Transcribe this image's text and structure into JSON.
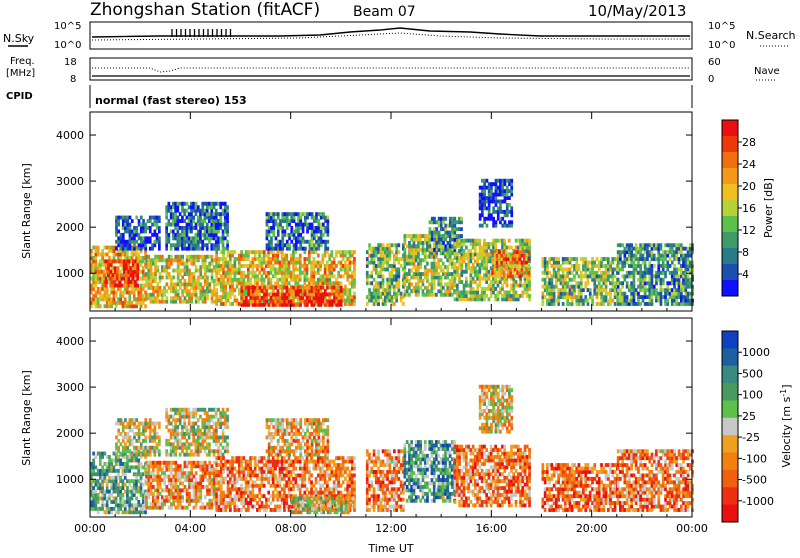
{
  "header": {
    "station": "Zhongshan Station (fitACF)",
    "beam": "Beam 07",
    "date": "10/May/2013"
  },
  "info_panels": {
    "nsky_label": "N.Sky",
    "nsearch_label": "N.Search",
    "nsky_ticks": [
      "10^5",
      "10^0"
    ],
    "freq_label_1": "Freq.",
    "freq_label_2": "[MHz]",
    "freq_ticks": [
      "18",
      "8"
    ],
    "nave_label": "Nave",
    "nave_ticks": [
      "60",
      "0"
    ],
    "cpid_label": "CPID",
    "cpid_text": "normal (fast stereo) 153"
  },
  "chart_data": [
    {
      "type": "heatmap",
      "name": "power",
      "ylabel": "Slant Range [km]",
      "ylim": [
        180,
        4500
      ],
      "yticks": [
        1000,
        2000,
        3000,
        4000
      ],
      "xlim": [
        0,
        24
      ],
      "xticks": [
        "00:00",
        "04:00",
        "08:00",
        "12:00",
        "16:00",
        "20:00",
        "00:00"
      ],
      "colorbar": {
        "label": "Power [dB]",
        "ticks": [
          "4",
          "8",
          "12",
          "16",
          "20",
          "24",
          "28"
        ],
        "colors": [
          "#1010ff",
          "#1d4fb0",
          "#2a7a8a",
          "#3f9a6a",
          "#5cc04a",
          "#b6d23a",
          "#f0c020",
          "#f59a18",
          "#f07010",
          "#ee3a0a",
          "#e81010"
        ]
      },
      "echo_regions": [
        {
          "t0": 0.0,
          "t1": 2.2,
          "r0": 250,
          "r1": 1600,
          "level": 0.62
        },
        {
          "t0": 0.5,
          "t1": 1.9,
          "r0": 700,
          "r1": 1300,
          "level": 0.92
        },
        {
          "t0": 1.0,
          "t1": 2.8,
          "r0": 1500,
          "r1": 2200,
          "level": 0.15
        },
        {
          "t0": 2.2,
          "t1": 5.0,
          "r0": 350,
          "r1": 1400,
          "level": 0.55
        },
        {
          "t0": 3.0,
          "t1": 5.5,
          "r0": 1500,
          "r1": 2500,
          "level": 0.2
        },
        {
          "t0": 5.0,
          "t1": 10.5,
          "r0": 300,
          "r1": 1500,
          "level": 0.6
        },
        {
          "t0": 6.0,
          "t1": 10.0,
          "r0": 280,
          "r1": 700,
          "level": 0.9
        },
        {
          "t0": 7.0,
          "t1": 9.5,
          "r0": 1500,
          "r1": 2300,
          "level": 0.22
        },
        {
          "t0": 11.0,
          "t1": 12.5,
          "r0": 300,
          "r1": 1600,
          "level": 0.4
        },
        {
          "t0": 12.5,
          "t1": 14.5,
          "r0": 500,
          "r1": 1800,
          "level": 0.48
        },
        {
          "t0": 13.5,
          "t1": 14.8,
          "r0": 1400,
          "r1": 2200,
          "level": 0.3
        },
        {
          "t0": 14.5,
          "t1": 17.5,
          "r0": 400,
          "r1": 1700,
          "level": 0.45
        },
        {
          "t0": 16.0,
          "t1": 17.5,
          "r0": 900,
          "r1": 1500,
          "level": 0.72
        },
        {
          "t0": 15.5,
          "t1": 16.8,
          "r0": 2000,
          "r1": 3000,
          "level": 0.12
        },
        {
          "t0": 18.0,
          "t1": 21.0,
          "r0": 300,
          "r1": 1300,
          "level": 0.42
        },
        {
          "t0": 21.0,
          "t1": 24.0,
          "r0": 300,
          "r1": 1600,
          "level": 0.3
        }
      ]
    },
    {
      "type": "heatmap",
      "name": "velocity",
      "ylabel": "Slant Range [km]",
      "ylim": [
        180,
        4500
      ],
      "yticks": [
        1000,
        2000,
        3000,
        4000
      ],
      "xlim": [
        0,
        24
      ],
      "xticks": [
        "00:00",
        "04:00",
        "08:00",
        "12:00",
        "16:00",
        "20:00",
        "00:00"
      ],
      "xlabel": "Time UT",
      "colorbar": {
        "label": "Velocity [m s^-1]",
        "ticks": [
          "1000",
          "500",
          "100",
          "25",
          "-25",
          "-100",
          "-500",
          "-1000"
        ],
        "colors": [
          "#1040c0",
          "#1d5fa0",
          "#3a8a80",
          "#4a9a60",
          "#5cc04a",
          "#c8c8c8",
          "#f0a020",
          "#f08010",
          "#f06010",
          "#ee3010",
          "#e81010"
        ]
      },
      "echo_regions": [
        {
          "t0": 0.0,
          "t1": 2.2,
          "r0": 250,
          "r1": 1600,
          "level": 0.35
        },
        {
          "t0": 1.0,
          "t1": 2.8,
          "r0": 1500,
          "r1": 2300,
          "level": 0.5
        },
        {
          "t0": 2.2,
          "t1": 5.0,
          "r0": 350,
          "r1": 1400,
          "level": 0.65
        },
        {
          "t0": 3.0,
          "t1": 5.5,
          "r0": 1500,
          "r1": 2500,
          "level": 0.5
        },
        {
          "t0": 5.0,
          "t1": 10.5,
          "r0": 300,
          "r1": 1500,
          "level": 0.72
        },
        {
          "t0": 8.0,
          "t1": 10.5,
          "r0": 250,
          "r1": 600,
          "level": 0.5
        },
        {
          "t0": 7.0,
          "t1": 9.5,
          "r0": 1500,
          "r1": 2300,
          "level": 0.6
        },
        {
          "t0": 11.0,
          "t1": 12.5,
          "r0": 300,
          "r1": 1600,
          "level": 0.7
        },
        {
          "t0": 12.5,
          "t1": 14.5,
          "r0": 500,
          "r1": 1800,
          "level": 0.3
        },
        {
          "t0": 14.5,
          "t1": 17.5,
          "r0": 400,
          "r1": 1700,
          "level": 0.72
        },
        {
          "t0": 15.5,
          "t1": 16.8,
          "r0": 2000,
          "r1": 3000,
          "level": 0.55
        },
        {
          "t0": 18.0,
          "t1": 21.0,
          "r0": 300,
          "r1": 1300,
          "level": 0.75
        },
        {
          "t0": 21.0,
          "t1": 24.0,
          "r0": 300,
          "r1": 1600,
          "level": 0.7
        }
      ]
    }
  ]
}
